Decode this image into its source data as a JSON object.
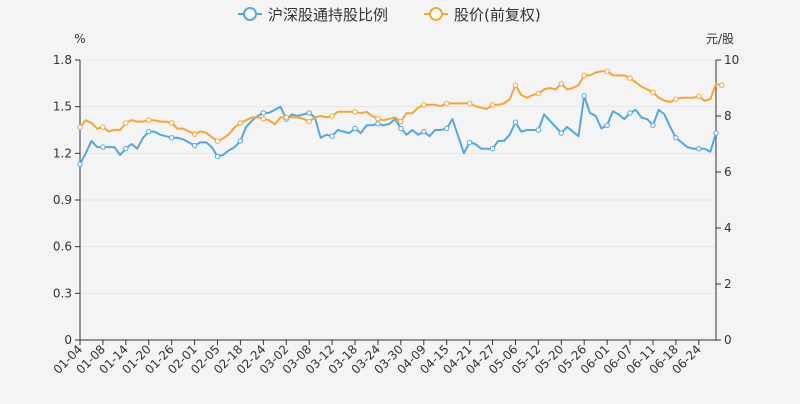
{
  "chart_data": {
    "type": "line",
    "legend": {
      "placement": "top-center",
      "items": [
        "沪深股通持股比例",
        "股价(前复权)"
      ]
    },
    "colors": {
      "ratio": "#4fa8e8",
      "price": "#f5a732",
      "axis": "#333333",
      "grid": "#e6e6e6"
    },
    "y_left": {
      "unit_label": "%",
      "ticks": [
        "0",
        "0.3",
        "0.6",
        "0.9",
        "1.2",
        "1.5",
        "1.8"
      ],
      "range": [
        0,
        1.8
      ]
    },
    "y_right": {
      "unit_label": "元/股",
      "ticks": [
        "0",
        "2",
        "4",
        "6",
        "8",
        "10"
      ],
      "range": [
        0,
        10
      ]
    },
    "x_tick_labels": [
      "01-04",
      "01-08",
      "01-14",
      "01-20",
      "01-26",
      "02-01",
      "02-05",
      "02-18",
      "02-24",
      "03-02",
      "03-08",
      "03-12",
      "03-18",
      "03-24",
      "03-30",
      "04-09",
      "04-15",
      "04-21",
      "04-27",
      "05-06",
      "05-12",
      "05-20",
      "05-26",
      "06-01",
      "06-07",
      "06-11",
      "06-18",
      "06-24"
    ],
    "x_tick_indices": [
      0,
      4,
      8,
      12,
      16,
      20,
      24,
      28,
      32,
      36,
      40,
      44,
      48,
      52,
      56,
      60,
      64,
      68,
      72,
      76,
      80,
      84,
      88,
      92,
      96,
      100,
      104,
      108
    ],
    "series": [
      {
        "name": "沪深股通持股比例",
        "axis": "left",
        "values": [
          1.13,
          1.2,
          1.28,
          1.24,
          1.24,
          1.24,
          1.24,
          1.19,
          1.23,
          1.26,
          1.23,
          1.3,
          1.34,
          1.34,
          1.32,
          1.31,
          1.3,
          1.3,
          1.29,
          1.27,
          1.25,
          1.27,
          1.27,
          1.24,
          1.18,
          1.19,
          1.22,
          1.24,
          1.28,
          1.37,
          1.41,
          1.44,
          1.46,
          1.46,
          1.48,
          1.5,
          1.42,
          1.45,
          1.44,
          1.45,
          1.46,
          1.43,
          1.3,
          1.32,
          1.31,
          1.35,
          1.34,
          1.33,
          1.36,
          1.33,
          1.38,
          1.38,
          1.39,
          1.38,
          1.39,
          1.42,
          1.36,
          1.32,
          1.35,
          1.32,
          1.34,
          1.31,
          1.35,
          1.35,
          1.36,
          1.42,
          1.31,
          1.2,
          1.27,
          1.26,
          1.23,
          1.23,
          1.23,
          1.28,
          1.28,
          1.32,
          1.4,
          1.34,
          1.35,
          1.35,
          1.35,
          1.45,
          1.41,
          1.37,
          1.33,
          1.37,
          1.34,
          1.31,
          1.57,
          1.46,
          1.44,
          1.36,
          1.38,
          1.47,
          1.45,
          1.42,
          1.46,
          1.48,
          1.43,
          1.42,
          1.38,
          1.48,
          1.45,
          1.37,
          1.3,
          1.27,
          1.24,
          1.23,
          1.23,
          1.23,
          1.21,
          1.33
        ]
      },
      {
        "name": "股价(前复权)",
        "axis": "right",
        "values": [
          7.6,
          7.85,
          7.75,
          7.55,
          7.6,
          7.45,
          7.5,
          7.5,
          7.75,
          7.85,
          7.8,
          7.8,
          7.85,
          7.85,
          7.8,
          7.8,
          7.75,
          7.55,
          7.55,
          7.45,
          7.35,
          7.45,
          7.4,
          7.25,
          7.1,
          7.2,
          7.35,
          7.6,
          7.75,
          7.85,
          7.95,
          7.95,
          7.9,
          7.85,
          7.7,
          7.95,
          7.95,
          7.95,
          7.95,
          7.9,
          7.8,
          7.95,
          8.0,
          7.95,
          8.0,
          8.15,
          8.15,
          8.15,
          8.15,
          8.1,
          8.15,
          8.0,
          7.9,
          7.85,
          7.9,
          7.95,
          7.8,
          8.1,
          8.1,
          8.3,
          8.4,
          8.4,
          8.4,
          8.35,
          8.45,
          8.45,
          8.45,
          8.45,
          8.45,
          8.35,
          8.3,
          8.25,
          8.4,
          8.4,
          8.45,
          8.6,
          9.1,
          8.75,
          8.65,
          8.75,
          8.8,
          8.95,
          9.0,
          8.95,
          9.15,
          8.95,
          9.0,
          9.1,
          9.45,
          9.45,
          9.55,
          9.6,
          9.6,
          9.45,
          9.45,
          9.45,
          9.35,
          9.2,
          9.05,
          8.95,
          8.85,
          8.65,
          8.55,
          8.5,
          8.6,
          8.65,
          8.65,
          8.65,
          8.7,
          8.55,
          8.6,
          9.15,
          9.1
        ]
      }
    ]
  }
}
